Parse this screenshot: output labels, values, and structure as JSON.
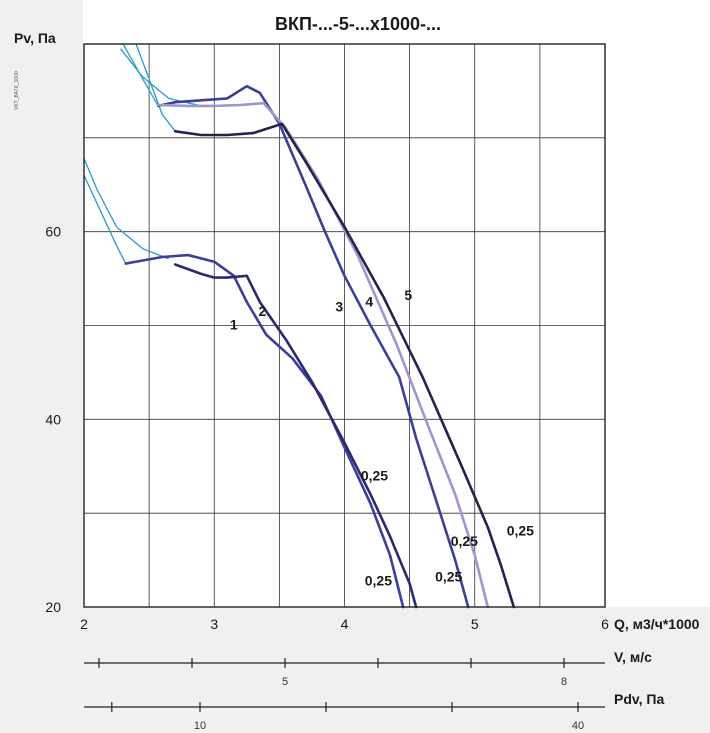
{
  "chart_data": {
    "type": "line",
    "title": "ВКП-...-5-...х1000-...",
    "ylabel": "Pv, Па",
    "xlabel": "Q, м3/ч*1000",
    "side_note": "VKT_B47X_1000",
    "xlim": [
      2,
      6
    ],
    "ylim": [
      20,
      80
    ],
    "grid": true,
    "x_ticks": [
      "2",
      "3",
      "4",
      "5",
      "6"
    ],
    "y_ticks": [
      "20",
      "40",
      "60"
    ],
    "secondary_axes": [
      {
        "label": "V, м/с",
        "ticks": [
          {
            "value": 5,
            "label": "5"
          },
          {
            "value": 8,
            "label": "8"
          }
        ]
      },
      {
        "label": "Pdv, Па",
        "ticks": [
          {
            "value": 10,
            "label": "10"
          },
          {
            "value": 40,
            "label": "40"
          }
        ]
      }
    ],
    "series": [
      {
        "name": "1",
        "color": "#3c3f9a",
        "x": [
          2.32,
          2.6,
          2.8,
          3.0,
          3.15,
          3.25,
          3.4,
          3.6,
          3.82,
          4.0,
          4.2,
          4.35,
          4.45
        ],
        "y": [
          56.6,
          57.3,
          57.5,
          56.8,
          55.3,
          52.5,
          49.0,
          46.5,
          42.5,
          37.0,
          31.0,
          25.5,
          20.0
        ]
      },
      {
        "name": "2",
        "color": "#2a2b6e",
        "x": [
          2.7,
          2.9,
          3.0,
          3.1,
          3.25,
          3.35,
          3.55,
          3.75,
          4.0,
          4.2,
          4.35,
          4.5,
          4.55
        ],
        "y": [
          56.5,
          55.5,
          55.1,
          55.1,
          55.3,
          52.5,
          48.5,
          44.0,
          37.5,
          32.0,
          27.5,
          22.5,
          20.0
        ]
      },
      {
        "name": "3",
        "color": "#3c3f9a",
        "x": [
          2.57,
          2.7,
          2.9,
          3.1,
          3.25,
          3.35,
          3.5,
          3.7,
          3.85,
          4.0,
          4.2,
          4.42,
          4.55,
          4.7,
          4.85,
          4.95
        ],
        "y": [
          73.4,
          73.8,
          74.0,
          74.2,
          75.5,
          74.8,
          71.5,
          65.0,
          60.0,
          55.3,
          50.0,
          44.5,
          38.0,
          31.5,
          25.0,
          20.0
        ]
      },
      {
        "name": "4",
        "color": "#9a97d0",
        "x": [
          2.57,
          2.8,
          3.0,
          3.2,
          3.38,
          3.55,
          3.8,
          4.1,
          4.4,
          4.65,
          4.85,
          5.0,
          5.1
        ],
        "y": [
          73.5,
          73.4,
          73.4,
          73.5,
          73.7,
          71.0,
          65.5,
          57.5,
          48.0,
          39.0,
          32.0,
          25.5,
          20.0
        ]
      },
      {
        "name": "5",
        "color": "#24234f",
        "x": [
          2.7,
          2.9,
          3.1,
          3.3,
          3.52,
          3.7,
          4.0,
          4.3,
          4.6,
          4.9,
          5.1,
          5.2,
          5.3
        ],
        "y": [
          70.7,
          70.3,
          70.3,
          70.5,
          71.5,
          67.5,
          60.5,
          53.0,
          44.5,
          35.0,
          28.5,
          24.5,
          20.0
        ]
      }
    ],
    "annotations": [
      {
        "text": "0,25",
        "x": 4.23,
        "y": 33.5
      },
      {
        "text": "0,25",
        "x": 4.92,
        "y": 26.5
      },
      {
        "text": "0,25",
        "x": 5.35,
        "y": 27.6
      },
      {
        "text": "0,25",
        "x": 4.26,
        "y": 22.3
      },
      {
        "text": "0,25",
        "x": 4.8,
        "y": 22.7
      }
    ],
    "curve_labels": [
      {
        "text": "1",
        "x": 3.15,
        "y": 49.6
      },
      {
        "text": "2",
        "x": 3.37,
        "y": 51.0
      },
      {
        "text": "3",
        "x": 3.96,
        "y": 51.5
      },
      {
        "text": "4",
        "x": 4.19,
        "y": 52.0
      },
      {
        "text": "5",
        "x": 4.49,
        "y": 52.7
      }
    ]
  }
}
